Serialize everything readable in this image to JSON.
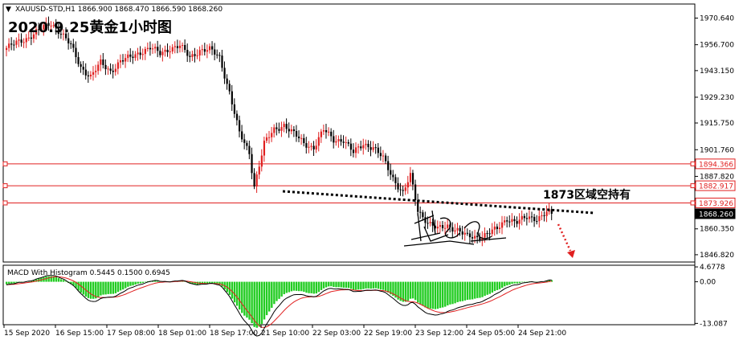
{
  "header": {
    "symbol_info": "XAUUSD-STD,H1  1866.900 1868.470 1866.590 1868.260",
    "title": "2020.9.25黄金1小时图",
    "annotation": "1873区域空持有"
  },
  "colors": {
    "bull": "#e02020",
    "bear": "#000000",
    "level": "#e02020",
    "macd_hist": "#22cc22",
    "signal": "#e02020",
    "macd_line": "#000000",
    "grid": "#000000"
  },
  "chart_data": [
    {
      "type": "candlestick",
      "symbol": "XAUUSD-STD",
      "timeframe": "H1",
      "ylim": [
        1843.0,
        1978.0
      ],
      "y_ticks": [
        "1970.640",
        "1956.700",
        "1943.150",
        "1929.230",
        "1915.750",
        "1901.760",
        "1887.820",
        "1873.880",
        "1860.350",
        "1846.820"
      ],
      "y_tick_values": [
        1970.64,
        1956.7,
        1943.15,
        1929.23,
        1915.75,
        1901.76,
        1887.82,
        1873.88,
        1860.35,
        1846.82
      ],
      "price_labels": [
        {
          "value": 1894.366,
          "text": "1894.366",
          "style": "red-outline"
        },
        {
          "value": 1882.917,
          "text": "1882.917",
          "style": "red-outline"
        },
        {
          "value": 1873.926,
          "text": "1873.926",
          "style": "red-outline"
        },
        {
          "value": 1868.26,
          "text": "1868.260",
          "style": "black-fill"
        }
      ],
      "horizontal_levels": [
        1894.366,
        1882.917,
        1873.926
      ],
      "x_labels": [
        "15 Sep 2020",
        "16 Sep 15:00",
        "17 Sep 08:00",
        "18 Sep 01:00",
        "18 Sep 17:00",
        "21 Sep 10:00",
        "22 Sep 03:00",
        "22 Sep 19:00",
        "23 Sep 12:00",
        "24 Sep 05:00",
        "24 Sep 21:00"
      ],
      "anchors": [
        [
          0,
          1955
        ],
        [
          8,
          1960
        ],
        [
          14,
          1965
        ],
        [
          18,
          1968
        ],
        [
          22,
          1963
        ],
        [
          26,
          1956
        ],
        [
          30,
          1945
        ],
        [
          34,
          1940
        ],
        [
          38,
          1947
        ],
        [
          42,
          1943
        ],
        [
          46,
          1948
        ],
        [
          50,
          1950
        ],
        [
          54,
          1953
        ],
        [
          58,
          1955
        ],
        [
          62,
          1952
        ],
        [
          66,
          1955
        ],
        [
          70,
          1956
        ],
        [
          74,
          1950
        ],
        [
          78,
          1954
        ],
        [
          82,
          1954
        ],
        [
          86,
          1950
        ],
        [
          90,
          1932
        ],
        [
          94,
          1910
        ],
        [
          98,
          1900
        ],
        [
          100,
          1883
        ],
        [
          104,
          1905
        ],
        [
          108,
          1912
        ],
        [
          112,
          1915
        ],
        [
          116,
          1910
        ],
        [
          120,
          1905
        ],
        [
          124,
          1903
        ],
        [
          128,
          1912
        ],
        [
          132,
          1907
        ],
        [
          136,
          1907
        ],
        [
          140,
          1900
        ],
        [
          144,
          1905
        ],
        [
          148,
          1903
        ],
        [
          152,
          1897
        ],
        [
          156,
          1887
        ],
        [
          160,
          1879
        ],
        [
          163,
          1888
        ],
        [
          166,
          1870
        ],
        [
          170,
          1864
        ],
        [
          174,
          1860
        ],
        [
          178,
          1862
        ],
        [
          182,
          1860
        ],
        [
          186,
          1856
        ],
        [
          190,
          1856
        ],
        [
          194,
          1858
        ],
        [
          198,
          1860
        ],
        [
          202,
          1866
        ],
        [
          206,
          1864
        ],
        [
          210,
          1866
        ],
        [
          214,
          1866
        ],
        [
          218,
          1869
        ],
        [
          220,
          1868.26
        ]
      ],
      "trendline_note": "dotted support line from 21 Sep low to 24 Sep 21:00"
    },
    {
      "type": "histogram+line",
      "title": "MACD With Histogram 0.5445 0.1500 0.6945",
      "y_ticks": [
        "4.6778",
        "0.00",
        "-13.087"
      ],
      "y_tick_values": [
        4.6778,
        0.0,
        -13.087
      ],
      "ylim": [
        -13.5,
        5.2
      ],
      "macd_last": 0.5445,
      "signal_last": 0.15,
      "hist_last": 0.6945
    }
  ]
}
